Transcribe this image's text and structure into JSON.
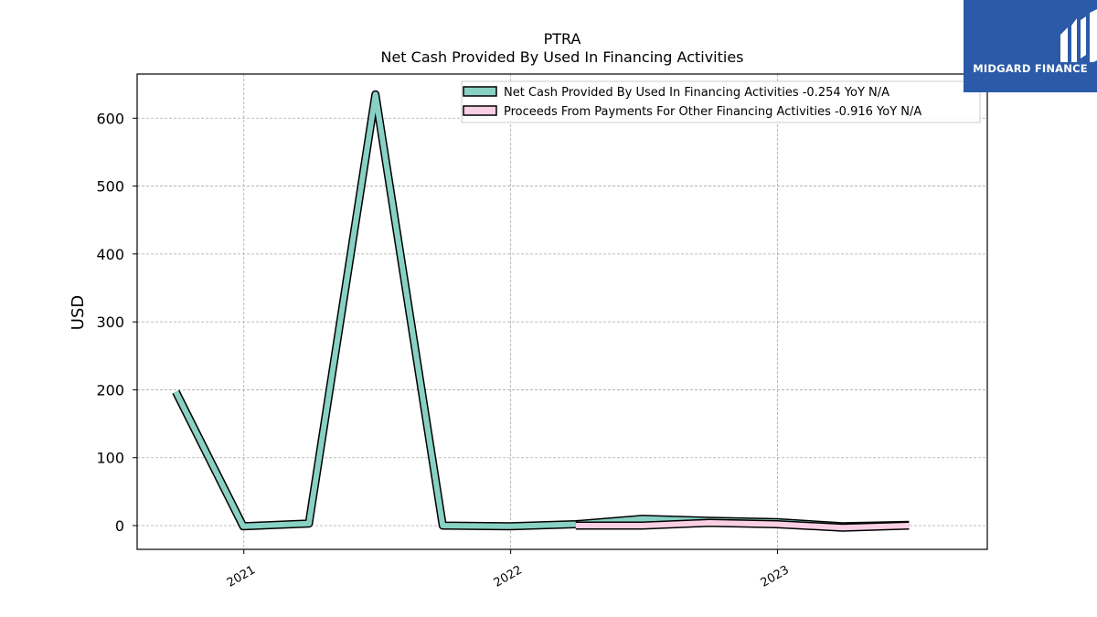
{
  "logo": {
    "text": "MIDGARD FINANCE",
    "background": "#2b5aa8"
  },
  "chart_data": {
    "type": "line",
    "title": "PTRA",
    "subtitle": "Net Cash Provided By Used In Financing Activities",
    "ylabel": "USD",
    "xlabel": "",
    "ylim": [
      -35,
      665
    ],
    "xlim": [
      "2020-08-08",
      "2023-10-15"
    ],
    "yticks": [
      0,
      100,
      200,
      300,
      400,
      500,
      600
    ],
    "xticks": [
      {
        "label": "2021",
        "date": "2021-01-01"
      },
      {
        "label": "2022",
        "date": "2022-01-01"
      },
      {
        "label": "2023",
        "date": "2023-01-01"
      }
    ],
    "grid": true,
    "legend_position": "top-right",
    "series": [
      {
        "name": "Net Cash Provided By Used In Financing Activities  -0.254 YoY N/A",
        "color": "#88d1c4",
        "points": [
          {
            "x": "2020-09-30",
            "y": 197
          },
          {
            "x": "2020-12-31",
            "y": -1
          },
          {
            "x": "2021-03-31",
            "y": 3
          },
          {
            "x": "2021-06-30",
            "y": 635
          },
          {
            "x": "2021-09-30",
            "y": 0
          },
          {
            "x": "2021-12-31",
            "y": -1
          },
          {
            "x": "2022-03-31",
            "y": 2
          },
          {
            "x": "2022-06-30",
            "y": 10
          },
          {
            "x": "2022-09-30",
            "y": 7
          },
          {
            "x": "2022-12-31",
            "y": 5
          },
          {
            "x": "2023-03-31",
            "y": -1
          },
          {
            "x": "2023-06-30",
            "y": 1
          }
        ]
      },
      {
        "name": "Proceeds From Payments For Other Financing Activities  -0.916 YoY N/A",
        "color": "#f9cfe4",
        "points": [
          {
            "x": "2022-03-31",
            "y": 0
          },
          {
            "x": "2022-06-30",
            "y": 0
          },
          {
            "x": "2022-09-30",
            "y": 4
          },
          {
            "x": "2022-12-31",
            "y": 2
          },
          {
            "x": "2023-03-31",
            "y": -3
          },
          {
            "x": "2023-06-30",
            "y": 0
          }
        ]
      }
    ]
  }
}
